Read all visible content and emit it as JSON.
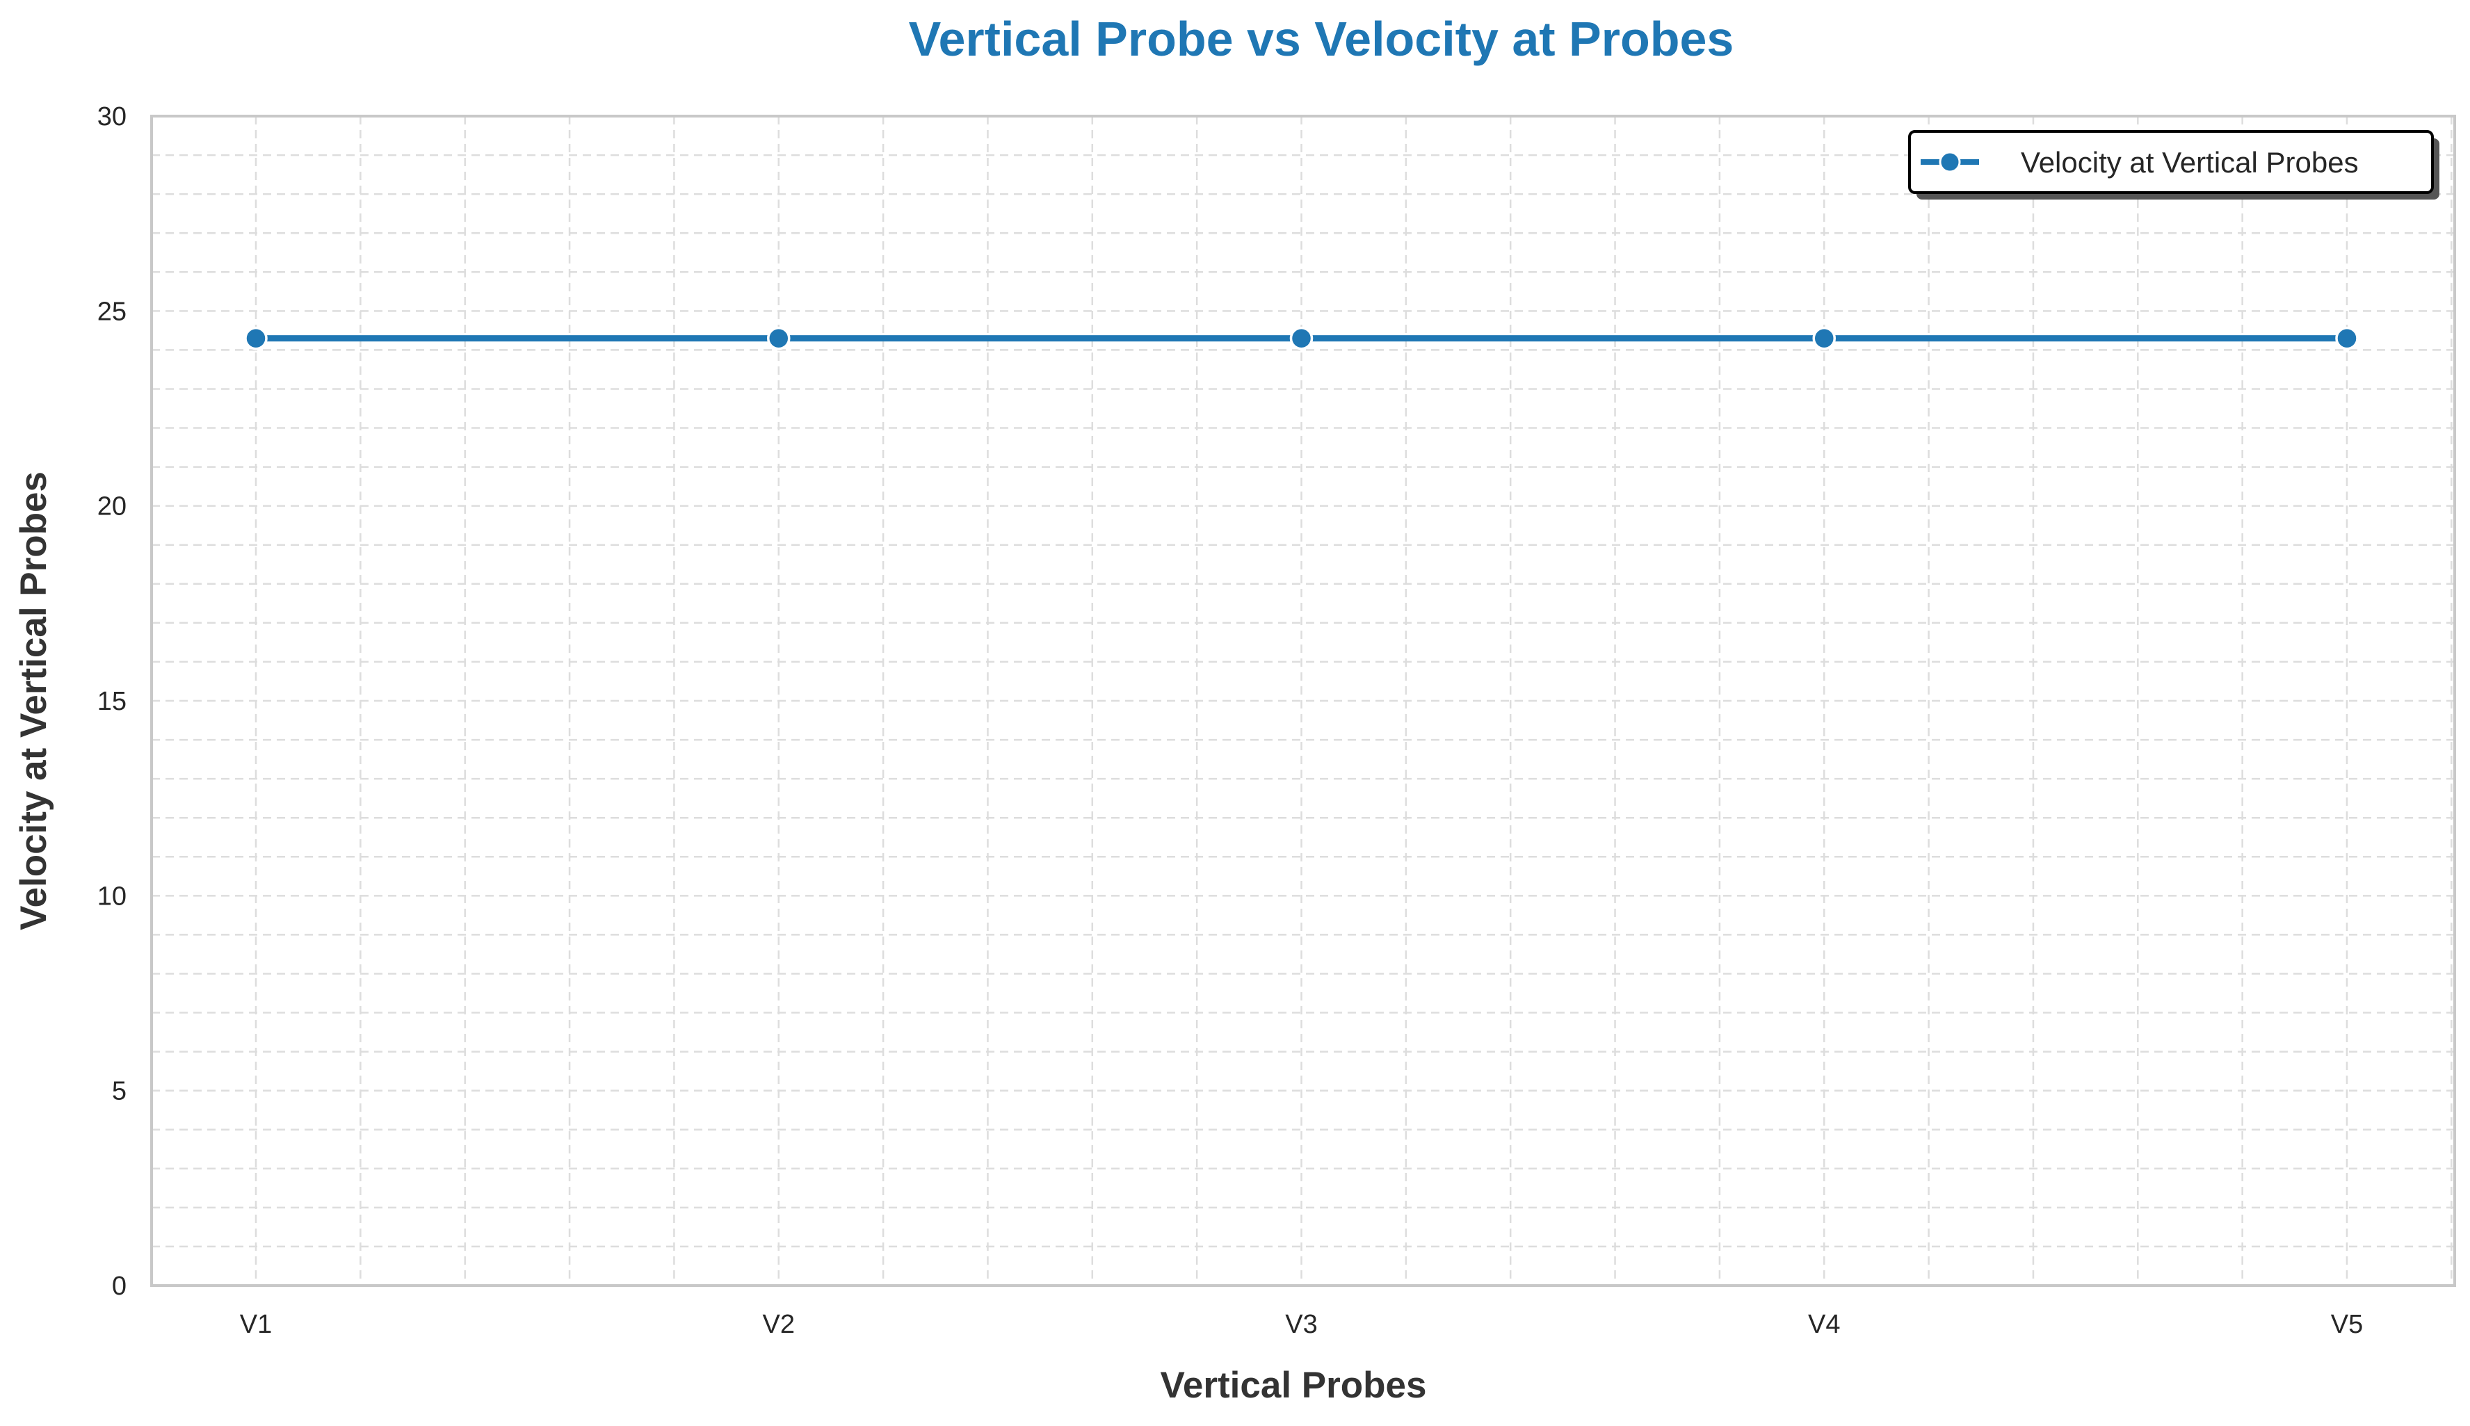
{
  "colors": {
    "series": "#1f77b4",
    "title": "#1f77b4",
    "grid": "#dddddd",
    "axis": "#c8c8c8",
    "text": "#262626"
  },
  "chart_data": {
    "type": "line",
    "title": "Vertical Probe vs Velocity at Probes",
    "xlabel": "Vertical Probes",
    "ylabel": "Velocity at Vertical Probes",
    "categories": [
      "V1",
      "V2",
      "V3",
      "V4",
      "V5"
    ],
    "series": [
      {
        "name": "Velocity at Vertical Probes",
        "values": [
          24.3,
          24.3,
          24.3,
          24.3,
          24.3
        ],
        "marker": "circle",
        "color": "#1f77b4"
      }
    ],
    "ylim": [
      0,
      30
    ],
    "yticks": [
      "0",
      "5",
      "10",
      "15",
      "20",
      "25",
      "30"
    ],
    "grid": true,
    "grid_style": "dashed",
    "minor_grid": true,
    "legend_position": "top-right"
  }
}
